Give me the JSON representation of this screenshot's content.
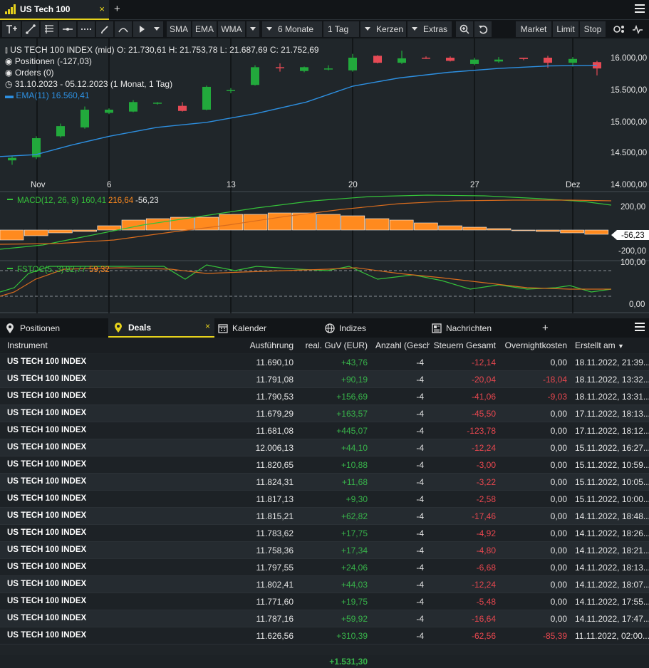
{
  "window": {
    "tab_title": "US Tech 100",
    "tab_close": "×",
    "new_tab": "+"
  },
  "toolbar": {
    "sma": "SMA",
    "ema": "EMA",
    "wma": "WMA",
    "period": "6 Monate",
    "interval": "1 Tag",
    "chart_type": "Kerzen",
    "extras": "Extras",
    "market": "Market",
    "limit": "Limit",
    "stop": "Stop"
  },
  "chart": {
    "title_line": "US TECH 100 INDEX (mid)  O: 21.730,61  H: 21.753,78  L: 21.687,69  C: 21.752,69",
    "positions": "Positionen (-127,03)",
    "orders": "Orders (0)",
    "range": "31.10.2023 - 05.12.2023  (1 Monat, 1 Tag)",
    "ema_label": "EMA(11)  16.560,41",
    "price_ticks": [
      "16.000,00",
      "15.500,00",
      "15.000,00",
      "14.500,00",
      "14.000,00"
    ],
    "date_ticks": [
      "Nov",
      "6",
      "13",
      "20",
      "27",
      "Dez"
    ],
    "macd_label": "MACD(12, 26, 9)",
    "macd_v1": "160,41",
    "macd_v2": "216,64",
    "macd_v3": "-56,23",
    "macd_ticks": [
      "200,00",
      "-200,00"
    ],
    "macd_current": "-56,23",
    "fstoc_label": "FSTOC(5, 3)",
    "fstoc_v1": "92,77",
    "fstoc_v2": "59,32",
    "fstoc_ticks": [
      "100,00",
      "0,00"
    ],
    "colors": {
      "up": "#22a93c",
      "down": "#e64a55",
      "ema": "#2d8fe0",
      "macd_hist": "#ff8a1e",
      "signal": "#d86c1e",
      "macd_line": "#35c23a"
    }
  },
  "bottom_tabs": [
    {
      "label": "Positionen",
      "icon": "pin-icon"
    },
    {
      "label": "Deals",
      "icon": "pin-icon",
      "active": true
    },
    {
      "label": "Kalender",
      "icon": "calendar-icon"
    },
    {
      "label": "Indizes",
      "icon": "globe-icon"
    },
    {
      "label": "Nachrichten",
      "icon": "news-icon"
    }
  ],
  "bottom_tab_close": "×",
  "bottom_tab_add": "+",
  "table": {
    "headers": {
      "instrument": "Instrument",
      "ausfuehrung": "Ausführung",
      "guv": "real. GuV (EUR)",
      "anzahl": "Anzahl (Geschl",
      "steuern": "Steuern Gesamt",
      "overnight": "Overnightkosten",
      "erstellt": "Erstellt am"
    },
    "sort_indicator": "▼",
    "rows": [
      {
        "instrument": "US TECH 100 INDEX",
        "ausfuehrung": "11.690,10",
        "guv": "+43,76",
        "anzahl": "-4",
        "steuern": "-12,14",
        "overnight": "0,00",
        "erstellt": "18.11.2022, 21:39..."
      },
      {
        "instrument": "US TECH 100 INDEX",
        "ausfuehrung": "11.791,08",
        "guv": "+90,19",
        "anzahl": "-4",
        "steuern": "-20,04",
        "overnight": "-18,04",
        "erstellt": "18.11.2022, 13:32..."
      },
      {
        "instrument": "US TECH 100 INDEX",
        "ausfuehrung": "11.790,53",
        "guv": "+156,69",
        "anzahl": "-4",
        "steuern": "-41,06",
        "overnight": "-9,03",
        "erstellt": "18.11.2022, 13:31..."
      },
      {
        "instrument": "US TECH 100 INDEX",
        "ausfuehrung": "11.679,29",
        "guv": "+163,57",
        "anzahl": "-4",
        "steuern": "-45,50",
        "overnight": "0,00",
        "erstellt": "17.11.2022, 18:13..."
      },
      {
        "instrument": "US TECH 100 INDEX",
        "ausfuehrung": "11.681,08",
        "guv": "+445,07",
        "anzahl": "-4",
        "steuern": "-123,78",
        "overnight": "0,00",
        "erstellt": "17.11.2022, 18:12..."
      },
      {
        "instrument": "US TECH 100 INDEX",
        "ausfuehrung": "12.006,13",
        "guv": "+44,10",
        "anzahl": "-4",
        "steuern": "-12,24",
        "overnight": "0,00",
        "erstellt": "15.11.2022, 16:27..."
      },
      {
        "instrument": "US TECH 100 INDEX",
        "ausfuehrung": "11.820,65",
        "guv": "+10,88",
        "anzahl": "-4",
        "steuern": "-3,00",
        "overnight": "0,00",
        "erstellt": "15.11.2022, 10:59..."
      },
      {
        "instrument": "US TECH 100 INDEX",
        "ausfuehrung": "11.824,31",
        "guv": "+11,68",
        "anzahl": "-4",
        "steuern": "-3,22",
        "overnight": "0,00",
        "erstellt": "15.11.2022, 10:05..."
      },
      {
        "instrument": "US TECH 100 INDEX",
        "ausfuehrung": "11.817,13",
        "guv": "+9,30",
        "anzahl": "-4",
        "steuern": "-2,58",
        "overnight": "0,00",
        "erstellt": "15.11.2022, 10:00..."
      },
      {
        "instrument": "US TECH 100 INDEX",
        "ausfuehrung": "11.815,21",
        "guv": "+62,82",
        "anzahl": "-4",
        "steuern": "-17,46",
        "overnight": "0,00",
        "erstellt": "14.11.2022, 18:48..."
      },
      {
        "instrument": "US TECH 100 INDEX",
        "ausfuehrung": "11.783,62",
        "guv": "+17,75",
        "anzahl": "-4",
        "steuern": "-4,92",
        "overnight": "0,00",
        "erstellt": "14.11.2022, 18:26..."
      },
      {
        "instrument": "US TECH 100 INDEX",
        "ausfuehrung": "11.758,36",
        "guv": "+17,34",
        "anzahl": "-4",
        "steuern": "-4,80",
        "overnight": "0,00",
        "erstellt": "14.11.2022, 18:21..."
      },
      {
        "instrument": "US TECH 100 INDEX",
        "ausfuehrung": "11.797,55",
        "guv": "+24,06",
        "anzahl": "-4",
        "steuern": "-6,68",
        "overnight": "0,00",
        "erstellt": "14.11.2022, 18:13..."
      },
      {
        "instrument": "US TECH 100 INDEX",
        "ausfuehrung": "11.802,41",
        "guv": "+44,03",
        "anzahl": "-4",
        "steuern": "-12,24",
        "overnight": "0,00",
        "erstellt": "14.11.2022, 18:07..."
      },
      {
        "instrument": "US TECH 100 INDEX",
        "ausfuehrung": "11.771,60",
        "guv": "+19,75",
        "anzahl": "-4",
        "steuern": "-5,48",
        "overnight": "0,00",
        "erstellt": "14.11.2022, 17:55..."
      },
      {
        "instrument": "US TECH 100 INDEX",
        "ausfuehrung": "11.787,16",
        "guv": "+59,92",
        "anzahl": "-4",
        "steuern": "-16,64",
        "overnight": "0,00",
        "erstellt": "14.11.2022, 17:47..."
      },
      {
        "instrument": "US TECH 100 INDEX",
        "ausfuehrung": "11.626,56",
        "guv": "+310,39",
        "anzahl": "-4",
        "steuern": "-62,56",
        "overnight": "-85,39",
        "erstellt": "11.11.2022, 02:00..."
      }
    ],
    "total_guv": "+1.531,30"
  }
}
